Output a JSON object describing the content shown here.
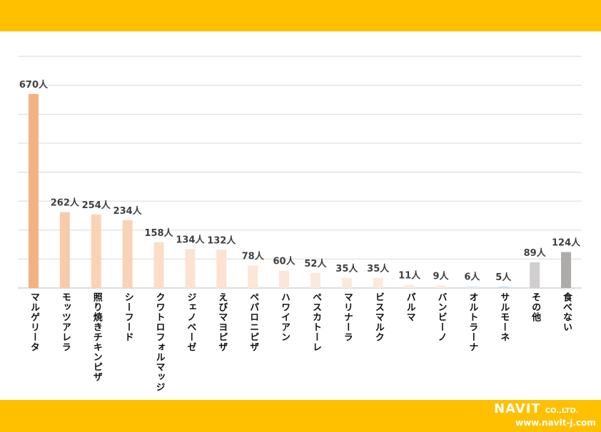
{
  "chart_data": {
    "type": "bar",
    "title": "",
    "xlabel": "",
    "ylabel": "",
    "ylim": [
      0,
      800
    ],
    "grid": true,
    "grid_step": 100,
    "unit_suffix": "人",
    "categories": [
      "マルゲリータ",
      "モッツアレラ",
      "照り焼きチキンピザ",
      "シーフード",
      "クワトロフォルマッジ",
      "ジェノベーゼ",
      "えびマヨピザ",
      "ペパロニピザ",
      "ハワイアン",
      "ペスカトーレ",
      "マリナーラ",
      "ビスマルク",
      "パルマ",
      "バンビーノ",
      "オルトラーナ",
      "サルモーネ",
      "その他",
      "食べない"
    ],
    "values": [
      670,
      262,
      254,
      234,
      158,
      134,
      132,
      78,
      60,
      52,
      35,
      35,
      11,
      9,
      6,
      5,
      89,
      124
    ],
    "data_labels": [
      "670人",
      "262人",
      "254人",
      "234人",
      "158人",
      "134人",
      "132人",
      "78人",
      "60人",
      "52人",
      "35人",
      "35人",
      "11人",
      "9人",
      "6人",
      "5人",
      "89人",
      "124人"
    ],
    "colors": [
      "#F4B183",
      "#F8CBAD",
      "#F9D3B8",
      "#F9D3B8",
      "#FBDDC8",
      "#FBE2D2",
      "#FBE2D2",
      "#FCE6D8",
      "#FCE6D8",
      "#FCE9DD",
      "#FCE9DD",
      "#FCE9DD",
      "#FDEBE0",
      "#FDEBE0",
      "#DDEBF7",
      "#C9DFF2",
      "#D0CECE",
      "#AEAAAA"
    ]
  },
  "logo": {
    "name": "NAVIT",
    "suffix": "CO.,LTD.",
    "url": "www.navit-j.com"
  },
  "colors": {
    "band": "#FFC000",
    "grid": "#D9D9D9",
    "label": "#404040"
  }
}
